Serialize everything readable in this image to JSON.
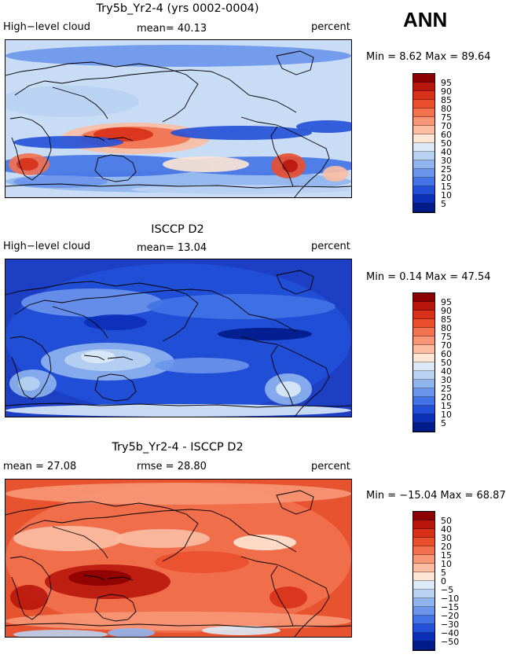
{
  "season": "ANN",
  "panels": [
    {
      "title": "Try5b_Yr2-4 (yrs 0002-0004)",
      "left_label": "High−level cloud",
      "mid_label": "mean=  40.13",
      "right_label": "percent",
      "minmax": "Min =    8.62  Max =   89.64",
      "ticks": [
        "95",
        "90",
        "85",
        "80",
        "75",
        "70",
        "60",
        "50",
        "40",
        "30",
        "25",
        "20",
        "15",
        "10",
        "5"
      ],
      "colors": [
        "#8b0000",
        "#b8160c",
        "#d83019",
        "#ea4f2c",
        "#f2714f",
        "#f79777",
        "#fbbea3",
        "#fde6d4",
        "#dceaf8",
        "#b9d2f2",
        "#8fb4ee",
        "#6a95eb",
        "#4373e6",
        "#2250d8",
        "#0b2fb7",
        "#001b8a"
      ],
      "background": "#c9dcf5"
    },
    {
      "title": "ISCCP D2",
      "left_label": "High−level cloud",
      "mid_label": "mean=  13.04",
      "right_label": "percent",
      "minmax": "Min =    0.14  Max =   47.54",
      "ticks": [
        "95",
        "90",
        "85",
        "80",
        "75",
        "70",
        "60",
        "50",
        "40",
        "30",
        "25",
        "20",
        "15",
        "10",
        "5"
      ],
      "colors": [
        "#8b0000",
        "#b8160c",
        "#d83019",
        "#ea4f2c",
        "#f2714f",
        "#f79777",
        "#fbbea3",
        "#fde6d4",
        "#dceaf8",
        "#b9d2f2",
        "#8fb4ee",
        "#6a95eb",
        "#4373e6",
        "#2250d8",
        "#0b2fb7",
        "#001b8a"
      ],
      "background": "#1d3fc4"
    },
    {
      "title": "Try5b_Yr2-4 - ISCCP D2",
      "left_label": "mean =  27.08",
      "mid_label": "rmse =  28.80",
      "right_label": "percent",
      "minmax": "Min = −15.04  Max =   68.87",
      "ticks": [
        "50",
        "40",
        "30",
        "20",
        "15",
        "10",
        "5",
        "0",
        "−5",
        "−10",
        "−15",
        "−20",
        "−30",
        "−40",
        "−50"
      ],
      "colors": [
        "#8b0000",
        "#b8160c",
        "#d83019",
        "#ea4f2c",
        "#f2714f",
        "#f79777",
        "#fbbea3",
        "#fde6d4",
        "#dceaf8",
        "#b9d2f2",
        "#8fb4ee",
        "#6a95eb",
        "#4373e6",
        "#2250d8",
        "#0b2fb7",
        "#001b8a"
      ],
      "background": "#e8532f"
    }
  ],
  "chart_data": [
    {
      "type": "heatmap",
      "title": "Try5b_Yr2-4 (yrs 0002-0004)",
      "variable": "High-level cloud",
      "units": "percent",
      "mean": 40.13,
      "min": 8.62,
      "max": 89.64,
      "contour_levels": [
        5,
        10,
        15,
        20,
        25,
        30,
        40,
        50,
        60,
        70,
        75,
        80,
        85,
        90,
        95
      ]
    },
    {
      "type": "heatmap",
      "title": "ISCCP D2",
      "variable": "High-level cloud",
      "units": "percent",
      "mean": 13.04,
      "min": 0.14,
      "max": 47.54,
      "contour_levels": [
        5,
        10,
        15,
        20,
        25,
        30,
        40,
        50,
        60,
        70,
        75,
        80,
        85,
        90,
        95
      ]
    },
    {
      "type": "heatmap",
      "title": "Try5b_Yr2-4 - ISCCP D2",
      "units": "percent",
      "mean": 27.08,
      "rmse": 28.8,
      "min": -15.04,
      "max": 68.87,
      "contour_levels": [
        -50,
        -40,
        -30,
        -20,
        -15,
        -10,
        -5,
        0,
        5,
        10,
        15,
        20,
        30,
        40,
        50
      ]
    }
  ]
}
